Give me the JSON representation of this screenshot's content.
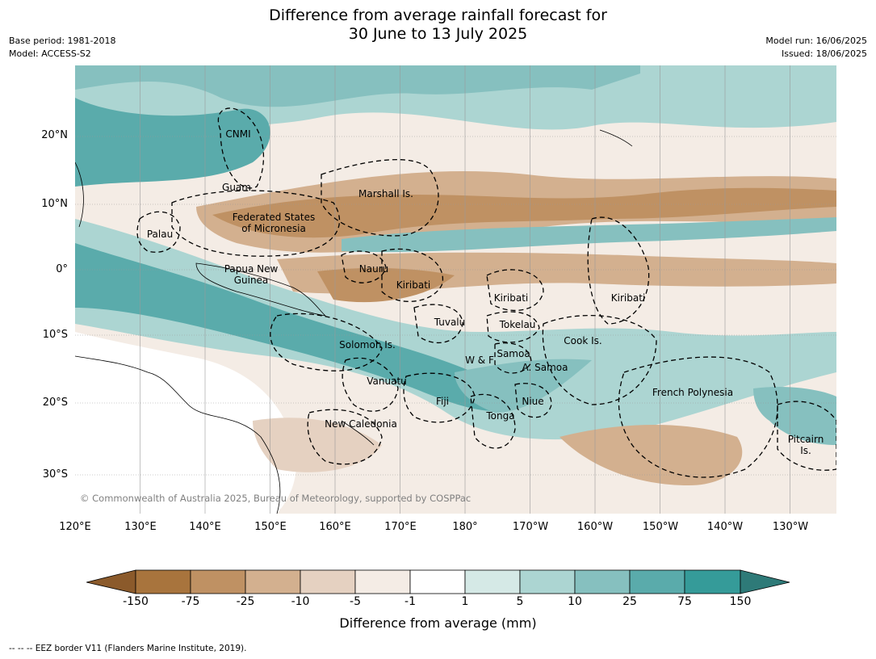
{
  "title": {
    "line1": "Difference from average rainfall forecast for",
    "line2": "30 June to 13 July 2025"
  },
  "meta_left": {
    "base_period": "Base period: 1981-2018",
    "model": "Model: ACCESS-S2"
  },
  "meta_right": {
    "model_run": "Model run: 16/06/2025",
    "issued": "Issued: 18/06/2025"
  },
  "map": {
    "lat_labels": [
      "20°N",
      "10°N",
      "0°",
      "10°S",
      "20°S",
      "30°S"
    ],
    "lon_labels": [
      "120°E",
      "130°E",
      "140°E",
      "150°E",
      "160°E",
      "170°E",
      "180°",
      "170°W",
      "160°W",
      "150°W",
      "140°W",
      "130°W"
    ],
    "regions": [
      {
        "label": "CNMI"
      },
      {
        "label": "Guam"
      },
      {
        "label": "Marshall Is."
      },
      {
        "label": "Federated States\nof Micronesia"
      },
      {
        "label": "Palau"
      },
      {
        "label": "Papua New\nGuinea"
      },
      {
        "label": "Nauru"
      },
      {
        "label": "Kiribati"
      },
      {
        "label": "Kiribati"
      },
      {
        "label": "Kiribati"
      },
      {
        "label": "Tuvalu"
      },
      {
        "label": "Tokelau"
      },
      {
        "label": "Cook Is."
      },
      {
        "label": "Solomon Is."
      },
      {
        "label": "Samoa"
      },
      {
        "label": "W & F"
      },
      {
        "label": "A. Samoa"
      },
      {
        "label": "Vanuatu"
      },
      {
        "label": "Fiji"
      },
      {
        "label": "Niue"
      },
      {
        "label": "French Polynesia"
      },
      {
        "label": "Tonga"
      },
      {
        "label": "New Caledonia"
      },
      {
        "label": "Pitcairn\nIs."
      }
    ],
    "copyright": "© Commonwealth of Australia 2025, Bureau of Meteorology, supported by COSPPac"
  },
  "colorbar": {
    "labels": [
      "-150",
      "-75",
      "-25",
      "-10",
      "-5",
      "-1",
      "1",
      "5",
      "10",
      "25",
      "75",
      "150"
    ],
    "colors": [
      "#8b5a2b",
      "#a8743d",
      "#bf9163",
      "#d3b08f",
      "#e5d1c1",
      "#f4ece5",
      "#ffffff",
      "#d5e9e6",
      "#acd5d2",
      "#86c0bf",
      "#5aabab",
      "#359b99",
      "#2e7a78"
    ],
    "title": "Difference from average (mm)"
  },
  "footnote": "--  --  -- EEZ border V11 (Flanders Marine Institute, 2019)."
}
